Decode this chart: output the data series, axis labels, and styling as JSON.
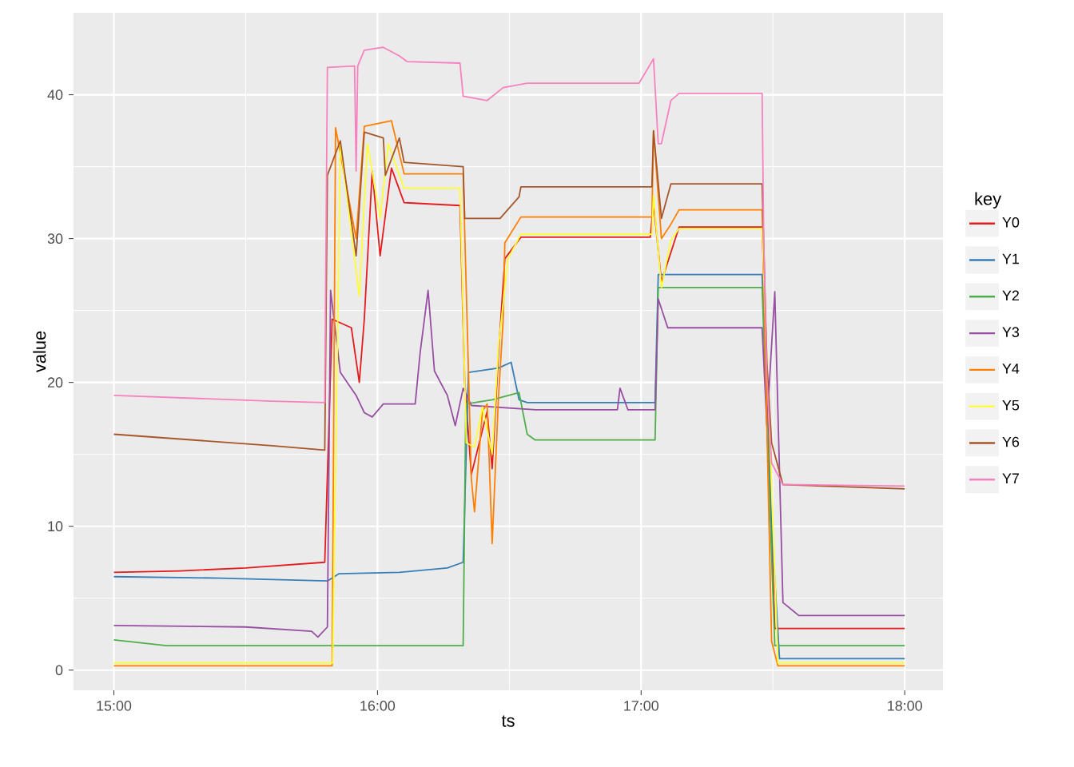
{
  "chart_data": {
    "type": "line",
    "xlabel": "ts",
    "ylabel": "value",
    "legend_title": "key",
    "legend": "right",
    "grid": true,
    "line_style": "solid",
    "marker": "none",
    "xlim": [
      14.847,
      18.145
    ],
    "ylim": [
      -1.4,
      45.7
    ],
    "xticks": [
      {
        "value": 15,
        "label": "15:00"
      },
      {
        "value": 16,
        "label": "16:00"
      },
      {
        "value": 17,
        "label": "17:00"
      },
      {
        "value": 18,
        "label": "18:00"
      }
    ],
    "yticks": [
      0,
      10,
      20,
      30,
      40
    ],
    "series": [
      {
        "name": "Y0",
        "color": "#e41a1c",
        "x": [
          15.0,
          15.25,
          15.5,
          15.8,
          15.828,
          15.901,
          15.931,
          15.95,
          15.98,
          16.01,
          16.053,
          16.101,
          16.313,
          16.331,
          16.356,
          16.416,
          16.435,
          16.459,
          16.483,
          16.544,
          17.035,
          17.047,
          17.077,
          17.144,
          17.459,
          17.507,
          18.0
        ],
        "values": [
          6.8,
          6.9,
          7.1,
          7.5,
          24.4,
          23.8,
          20.0,
          24.4,
          34.7,
          28.8,
          34.9,
          32.5,
          32.3,
          20.0,
          13.6,
          18.0,
          14.0,
          22.0,
          28.6,
          30.1,
          30.1,
          32.5,
          27.0,
          30.8,
          30.8,
          2.9,
          2.9
        ]
      },
      {
        "name": "Y1",
        "color": "#377eb8",
        "x": [
          15.0,
          15.4,
          15.81,
          15.853,
          16.083,
          16.265,
          16.325,
          16.345,
          16.459,
          16.507,
          16.537,
          16.568,
          17.053,
          17.065,
          17.459,
          17.495,
          17.525,
          18.0
        ],
        "values": [
          6.5,
          6.4,
          6.2,
          6.7,
          6.8,
          7.1,
          7.5,
          20.7,
          21.0,
          21.4,
          18.8,
          18.6,
          18.6,
          27.5,
          27.5,
          10.0,
          0.8,
          0.8
        ]
      },
      {
        "name": "Y2",
        "color": "#4daf4a",
        "x": [
          15.0,
          15.2,
          15.5,
          16.325,
          16.335,
          16.435,
          16.537,
          16.568,
          16.598,
          17.053,
          17.065,
          17.459,
          17.507,
          18.0
        ],
        "values": [
          2.1,
          1.7,
          1.7,
          1.7,
          18.5,
          18.8,
          19.3,
          16.4,
          16.0,
          16.0,
          26.6,
          26.6,
          1.7,
          1.7
        ]
      },
      {
        "name": "Y3",
        "color": "#984ea3",
        "x": [
          15.0,
          15.5,
          15.75,
          15.774,
          15.81,
          15.822,
          15.859,
          15.919,
          15.95,
          15.98,
          16.022,
          16.143,
          16.162,
          16.192,
          16.216,
          16.265,
          16.295,
          16.325,
          16.356,
          16.6,
          16.91,
          16.92,
          16.95,
          17.053,
          17.065,
          17.101,
          17.459,
          17.477,
          17.507,
          17.538,
          17.598,
          18.0
        ],
        "values": [
          3.1,
          3.0,
          2.7,
          2.3,
          3.0,
          26.4,
          20.7,
          19.1,
          17.9,
          17.6,
          18.5,
          18.5,
          22.1,
          26.4,
          20.8,
          19.1,
          17.0,
          19.6,
          18.4,
          18.1,
          18.1,
          19.6,
          18.1,
          18.1,
          25.8,
          23.8,
          23.8,
          17.0,
          26.3,
          4.7,
          3.8,
          3.8
        ]
      },
      {
        "name": "Y4",
        "color": "#ff7f00",
        "x": [
          15.0,
          15.81,
          15.828,
          15.841,
          15.919,
          15.95,
          16.053,
          16.101,
          16.325,
          16.356,
          16.368,
          16.398,
          16.416,
          16.435,
          16.459,
          16.477,
          16.483,
          16.544,
          17.041,
          17.047,
          17.077,
          17.113,
          17.144,
          17.459,
          17.495,
          17.519,
          18.0
        ],
        "values": [
          0.3,
          0.3,
          0.3,
          37.7,
          30.0,
          37.8,
          38.2,
          34.5,
          34.5,
          13.3,
          11.0,
          18.0,
          18.5,
          8.8,
          19.0,
          24.4,
          29.7,
          31.5,
          31.5,
          37.5,
          30.0,
          31.0,
          32.0,
          32.0,
          2.0,
          0.3,
          0.3
        ]
      },
      {
        "name": "Y5",
        "color": "#ffff33",
        "x": [
          15.0,
          15.81,
          15.83,
          15.859,
          15.931,
          15.962,
          16.01,
          16.041,
          16.101,
          16.313,
          16.337,
          16.368,
          16.398,
          16.435,
          16.459,
          16.495,
          16.544,
          17.041,
          17.047,
          17.077,
          17.113,
          17.144,
          17.459,
          17.519,
          18.0
        ],
        "values": [
          0.5,
          0.5,
          0.5,
          36.6,
          26.0,
          36.6,
          31.4,
          36.6,
          33.5,
          33.5,
          15.8,
          15.5,
          18.3,
          15.0,
          22.5,
          28.6,
          30.3,
          30.3,
          33.0,
          26.6,
          29.9,
          30.7,
          30.7,
          0.5,
          0.5
        ]
      },
      {
        "name": "Y6",
        "color": "#a65628",
        "x": [
          15.0,
          15.3,
          15.6,
          15.8,
          15.81,
          15.859,
          15.919,
          15.95,
          16.022,
          16.03,
          16.083,
          16.101,
          16.325,
          16.331,
          16.465,
          16.537,
          16.544,
          17.041,
          17.047,
          17.077,
          17.113,
          17.459,
          17.477,
          17.495,
          17.538,
          18.0
        ],
        "values": [
          16.4,
          16.0,
          15.6,
          15.3,
          34.4,
          36.8,
          28.8,
          37.4,
          37.0,
          34.4,
          37.0,
          35.3,
          35.0,
          31.4,
          31.4,
          32.9,
          33.6,
          33.6,
          37.5,
          31.4,
          33.8,
          33.8,
          21.4,
          15.8,
          12.9,
          12.6
        ]
      },
      {
        "name": "Y7",
        "color": "#f781bf",
        "x": [
          15.0,
          15.3,
          15.6,
          15.8,
          15.81,
          15.913,
          15.919,
          15.925,
          15.95,
          16.022,
          16.083,
          16.113,
          16.313,
          16.325,
          16.416,
          16.477,
          16.568,
          16.992,
          17.047,
          17.065,
          17.077,
          17.113,
          17.144,
          17.459,
          17.465,
          17.477,
          17.495,
          17.538,
          18.0
        ],
        "values": [
          19.1,
          18.9,
          18.7,
          18.6,
          41.9,
          42.0,
          34.7,
          42.0,
          43.1,
          43.3,
          42.7,
          42.3,
          42.2,
          39.9,
          39.6,
          40.5,
          40.8,
          40.8,
          42.5,
          36.6,
          36.6,
          39.6,
          40.1,
          40.1,
          30.0,
          20.3,
          14.4,
          12.9,
          12.8
        ]
      }
    ]
  }
}
